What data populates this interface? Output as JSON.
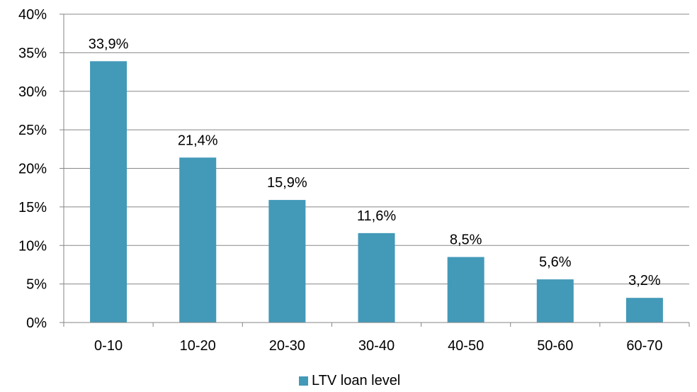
{
  "chart_data": {
    "type": "bar",
    "categories": [
      "0-10",
      "10-20",
      "20-30",
      "30-40",
      "40-50",
      "50-60",
      "60-70"
    ],
    "series": [
      {
        "name": "LTV loan level",
        "values": [
          33.9,
          21.4,
          15.9,
          11.6,
          8.5,
          5.6,
          3.2
        ],
        "color": "#4399b8"
      }
    ],
    "data_labels": [
      "33,9%",
      "21,4%",
      "15,9%",
      "11,6%",
      "8,5%",
      "5,6%",
      "3,2%"
    ],
    "y_ticks": [
      "0%",
      "5%",
      "10%",
      "15%",
      "20%",
      "25%",
      "30%",
      "35%",
      "40%"
    ],
    "ylim": [
      0,
      40
    ],
    "grid": true,
    "legend_position": "bottom",
    "title": "",
    "xlabel": "",
    "ylabel": ""
  },
  "legend": {
    "label": "LTV loan level"
  },
  "colors": {
    "bar": "#4399b8",
    "grid": "#888888",
    "axis": "#868686"
  }
}
